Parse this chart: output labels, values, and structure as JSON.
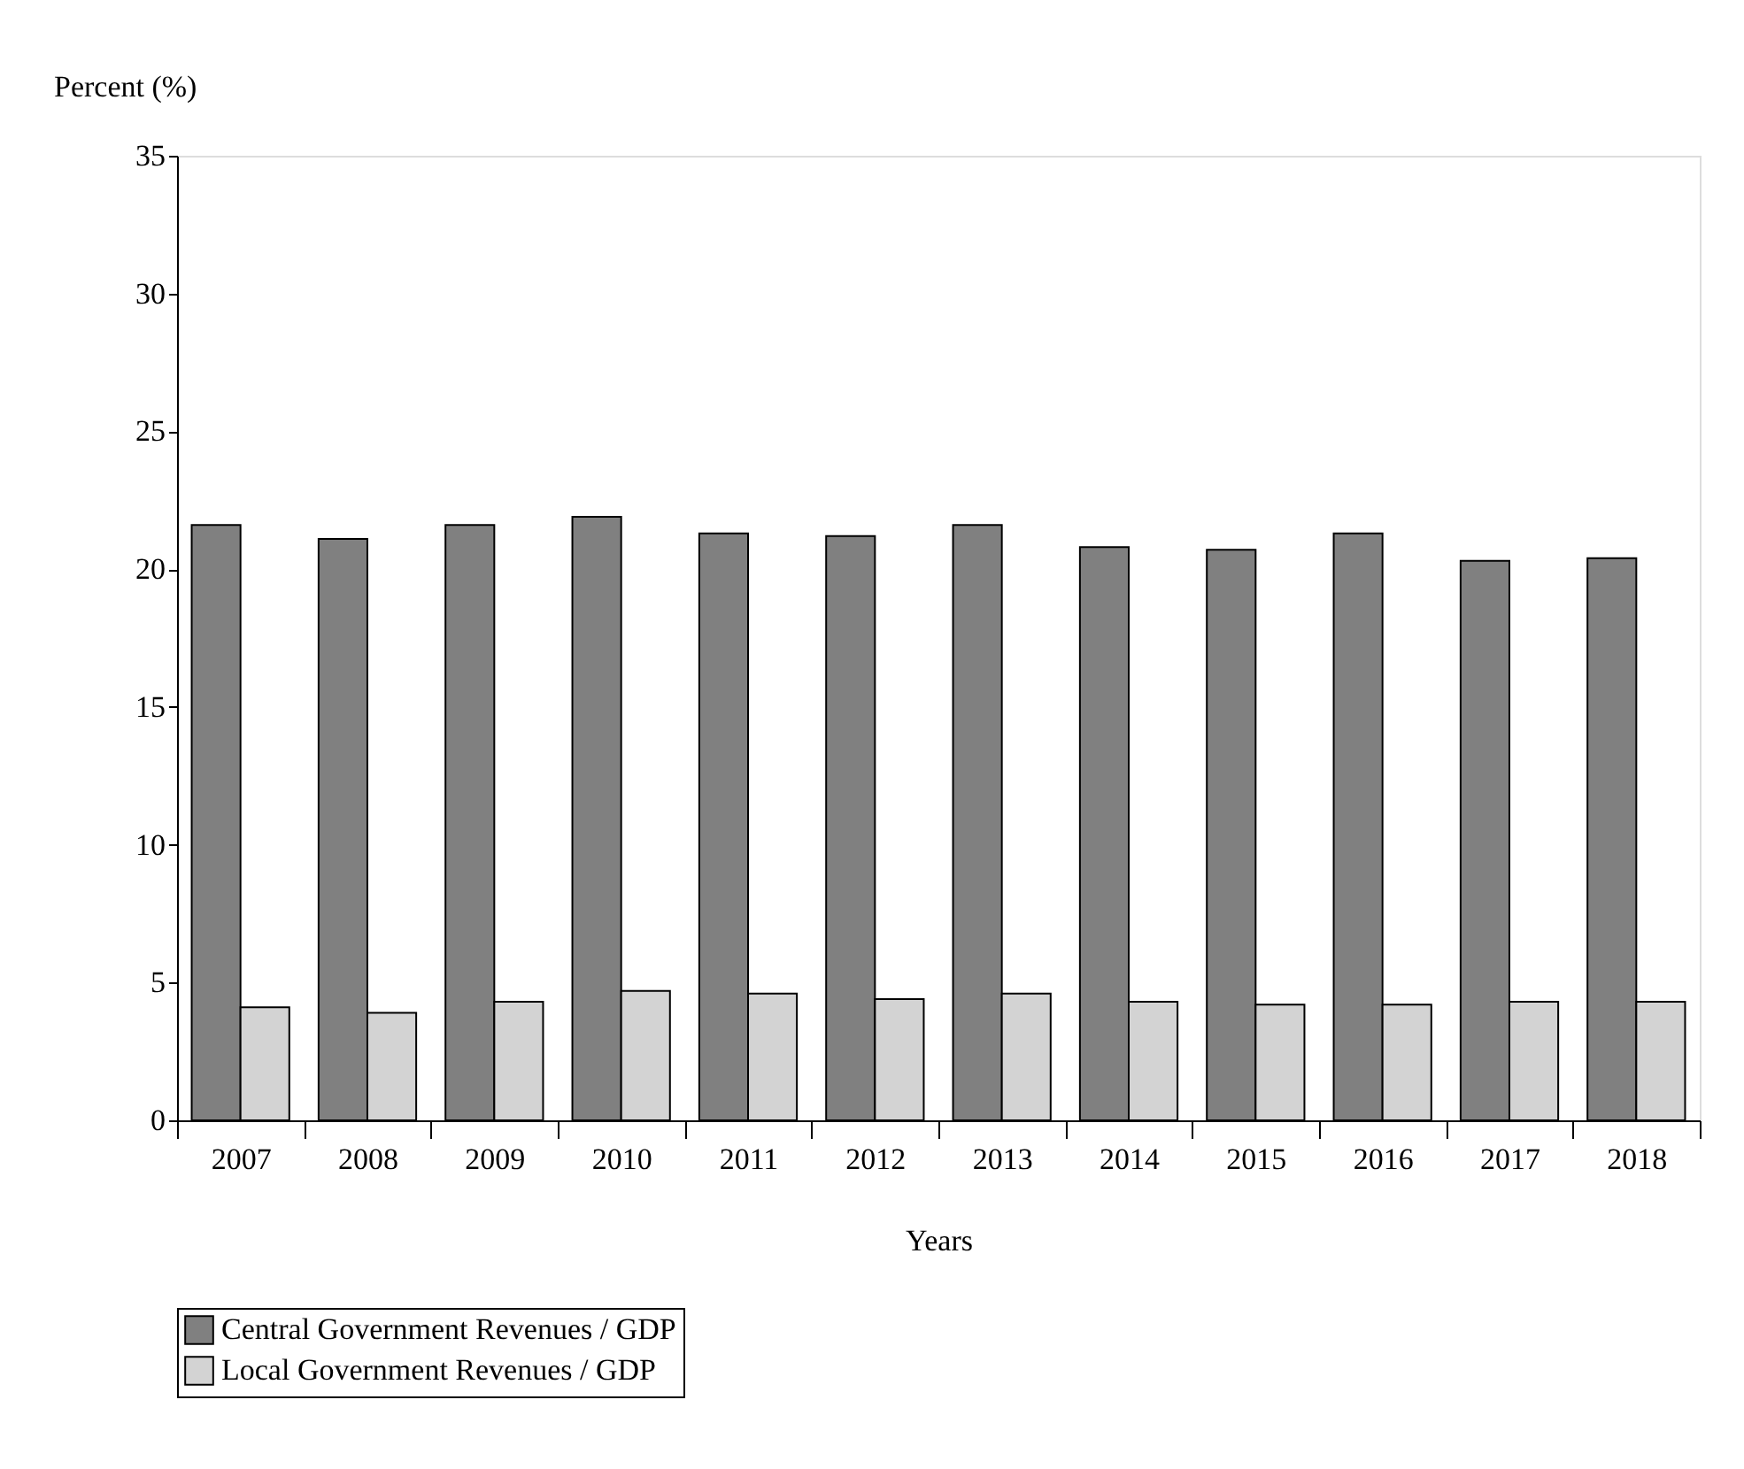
{
  "chart_data": {
    "type": "bar",
    "xlabel": "Years",
    "ylabel": "Percent (%)",
    "categories": [
      "2007",
      "2008",
      "2009",
      "2010",
      "2011",
      "2012",
      "2013",
      "2014",
      "2015",
      "2016",
      "2017",
      "2018"
    ],
    "series": [
      {
        "name": "Central Government Revenues / GDP",
        "color": "#808080",
        "values": [
          21.6,
          21.1,
          21.6,
          21.9,
          21.3,
          21.2,
          21.6,
          20.8,
          20.7,
          21.3,
          20.3,
          20.4
        ]
      },
      {
        "name": "Local Government Revenues / GDP",
        "color": "#d3d3d3",
        "values": [
          4.1,
          3.9,
          4.3,
          4.7,
          4.6,
          4.4,
          4.6,
          4.3,
          4.2,
          4.2,
          4.3,
          4.3
        ]
      }
    ],
    "ylim": [
      0,
      35
    ],
    "yticks": [
      0,
      5,
      10,
      15,
      20,
      25,
      30,
      35
    ],
    "grid": false,
    "legend": "bottom"
  }
}
